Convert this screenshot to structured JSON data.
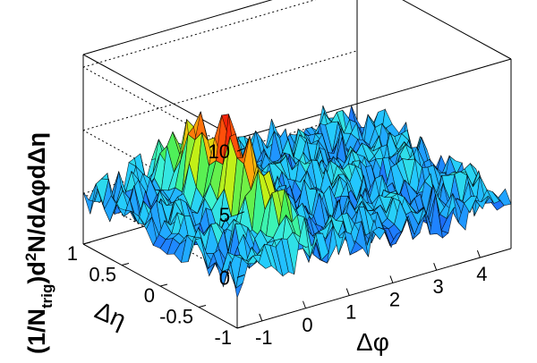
{
  "chart_data": {
    "type": "surface",
    "title": "",
    "xlabel": "Δφ",
    "ylabel": "Δη",
    "zlabel_parts": {
      "open": "(1/N",
      "sub": "trig",
      "close": ")d",
      "sup": "2",
      "rest": "N/dΔφdΔη"
    },
    "xlim": [
      -1.57,
      4.71
    ],
    "ylim": [
      -1,
      1
    ],
    "zlim": [
      -4,
      11
    ],
    "x_ticks": [
      -1,
      0,
      1,
      2,
      3,
      4
    ],
    "x_tick_labels": [
      "-1",
      "0",
      "1",
      "2",
      "3",
      "4"
    ],
    "y_ticks": [
      -1,
      -0.5,
      0,
      0.5,
      1
    ],
    "y_tick_labels": [
      "-1",
      "-0.5",
      "0",
      "0.5",
      "1"
    ],
    "z_ticks": [
      0,
      5,
      10
    ],
    "z_tick_labels": [
      "0",
      "5",
      "10"
    ],
    "grid": true,
    "colormap": [
      "#1530c8",
      "#1e78ff",
      "#23c8ff",
      "#3cf5d2",
      "#3cf064",
      "#c8f014",
      "#ffb40a",
      "#ff2d0a",
      "#c80000"
    ],
    "surface": {
      "baseline": 0,
      "noise_amplitude": 1.6,
      "peak": {
        "x": 0,
        "y": 0,
        "height": 7,
        "sigma_x": 0.18,
        "sigma_y": 0.55
      }
    }
  }
}
